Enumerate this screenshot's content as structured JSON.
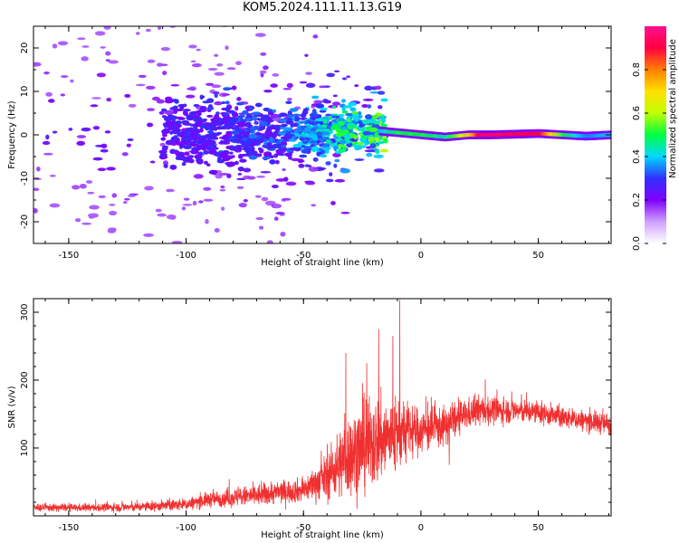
{
  "title": "KOM5.2024.111.11.13.G19",
  "chart_data": [
    {
      "type": "heatmap",
      "xlabel": "Height of straight line (km)",
      "ylabel": "Frequency (Hz)",
      "xlim": [
        -165,
        81
      ],
      "ylim": [
        -25,
        25
      ],
      "x_ticks": [
        -150,
        -100,
        -50,
        0,
        50
      ],
      "y_ticks": [
        -20,
        -10,
        0,
        10,
        20
      ],
      "colorbar": {
        "label": "Normalized spectral amplitude",
        "range": [
          0.0,
          1.0
        ],
        "ticks": [
          "0.0",
          "0.2",
          "0.4",
          "0.6",
          "0.8"
        ],
        "tick_values": [
          0.0,
          0.2,
          0.4,
          0.6,
          0.8
        ],
        "colors": [
          "#ffffff",
          "#cfa0ff",
          "#7f00ff",
          "#3030ff",
          "#00d8ff",
          "#00ff40",
          "#c0ff00",
          "#ffe000",
          "#ff8000",
          "#ff0040",
          "#ff1090"
        ]
      },
      "ridge_frequency_hz": [
        [
          -60,
          0.5
        ],
        [
          -40,
          1.0
        ],
        [
          -20,
          1.0
        ],
        [
          0,
          0.0
        ],
        [
          10,
          -0.5
        ],
        [
          20,
          0.0
        ],
        [
          30,
          0.0
        ],
        [
          50,
          0.3
        ],
        [
          70,
          -0.3
        ],
        [
          81,
          0.0
        ]
      ],
      "ridge_amplitude": [
        [
          -100,
          0.15
        ],
        [
          -60,
          0.2
        ],
        [
          -35,
          0.35
        ],
        [
          -18,
          0.4
        ],
        [
          -10,
          0.5
        ],
        [
          0,
          0.5
        ],
        [
          10,
          0.45
        ],
        [
          20,
          0.7
        ],
        [
          25,
          0.95
        ],
        [
          50,
          0.9
        ],
        [
          60,
          0.5
        ],
        [
          70,
          0.35
        ],
        [
          81,
          0.4
        ]
      ]
    },
    {
      "type": "line",
      "xlabel": "Height of straight line (km)",
      "ylabel": "SNR (v/v)",
      "xlim": [
        -165,
        81
      ],
      "ylim": [
        0,
        320
      ],
      "x_ticks": [
        -150,
        -100,
        -50,
        0,
        50
      ],
      "y_ticks": [
        100,
        200,
        300
      ],
      "color": "#f03030",
      "envelope": {
        "x": [
          -165,
          -140,
          -120,
          -100,
          -90,
          -80,
          -70,
          -60,
          -50,
          -45,
          -40,
          -35,
          -30,
          -25,
          -20,
          -15,
          -10,
          -5,
          0,
          5,
          10,
          15,
          20,
          25,
          30,
          40,
          50,
          60,
          70,
          81
        ],
        "mean": [
          12,
          12,
          13,
          17,
          24,
          27,
          30,
          35,
          38,
          48,
          58,
          75,
          90,
          100,
          108,
          115,
          118,
          125,
          125,
          128,
          132,
          142,
          150,
          155,
          155,
          155,
          152,
          145,
          140,
          135
        ],
        "spread": [
          5,
          5,
          6,
          8,
          10,
          12,
          15,
          15,
          16,
          22,
          30,
          45,
          55,
          60,
          60,
          55,
          50,
          35,
          30,
          28,
          25,
          22,
          20,
          20,
          18,
          16,
          15,
          14,
          14,
          15
        ]
      },
      "peaks": [
        {
          "x": -9,
          "y": 318
        },
        {
          "x": -18,
          "y": 275
        },
        {
          "x": -32,
          "y": 240
        },
        {
          "x": -12,
          "y": 265
        },
        {
          "x": 12,
          "y": 75
        }
      ]
    }
  ]
}
